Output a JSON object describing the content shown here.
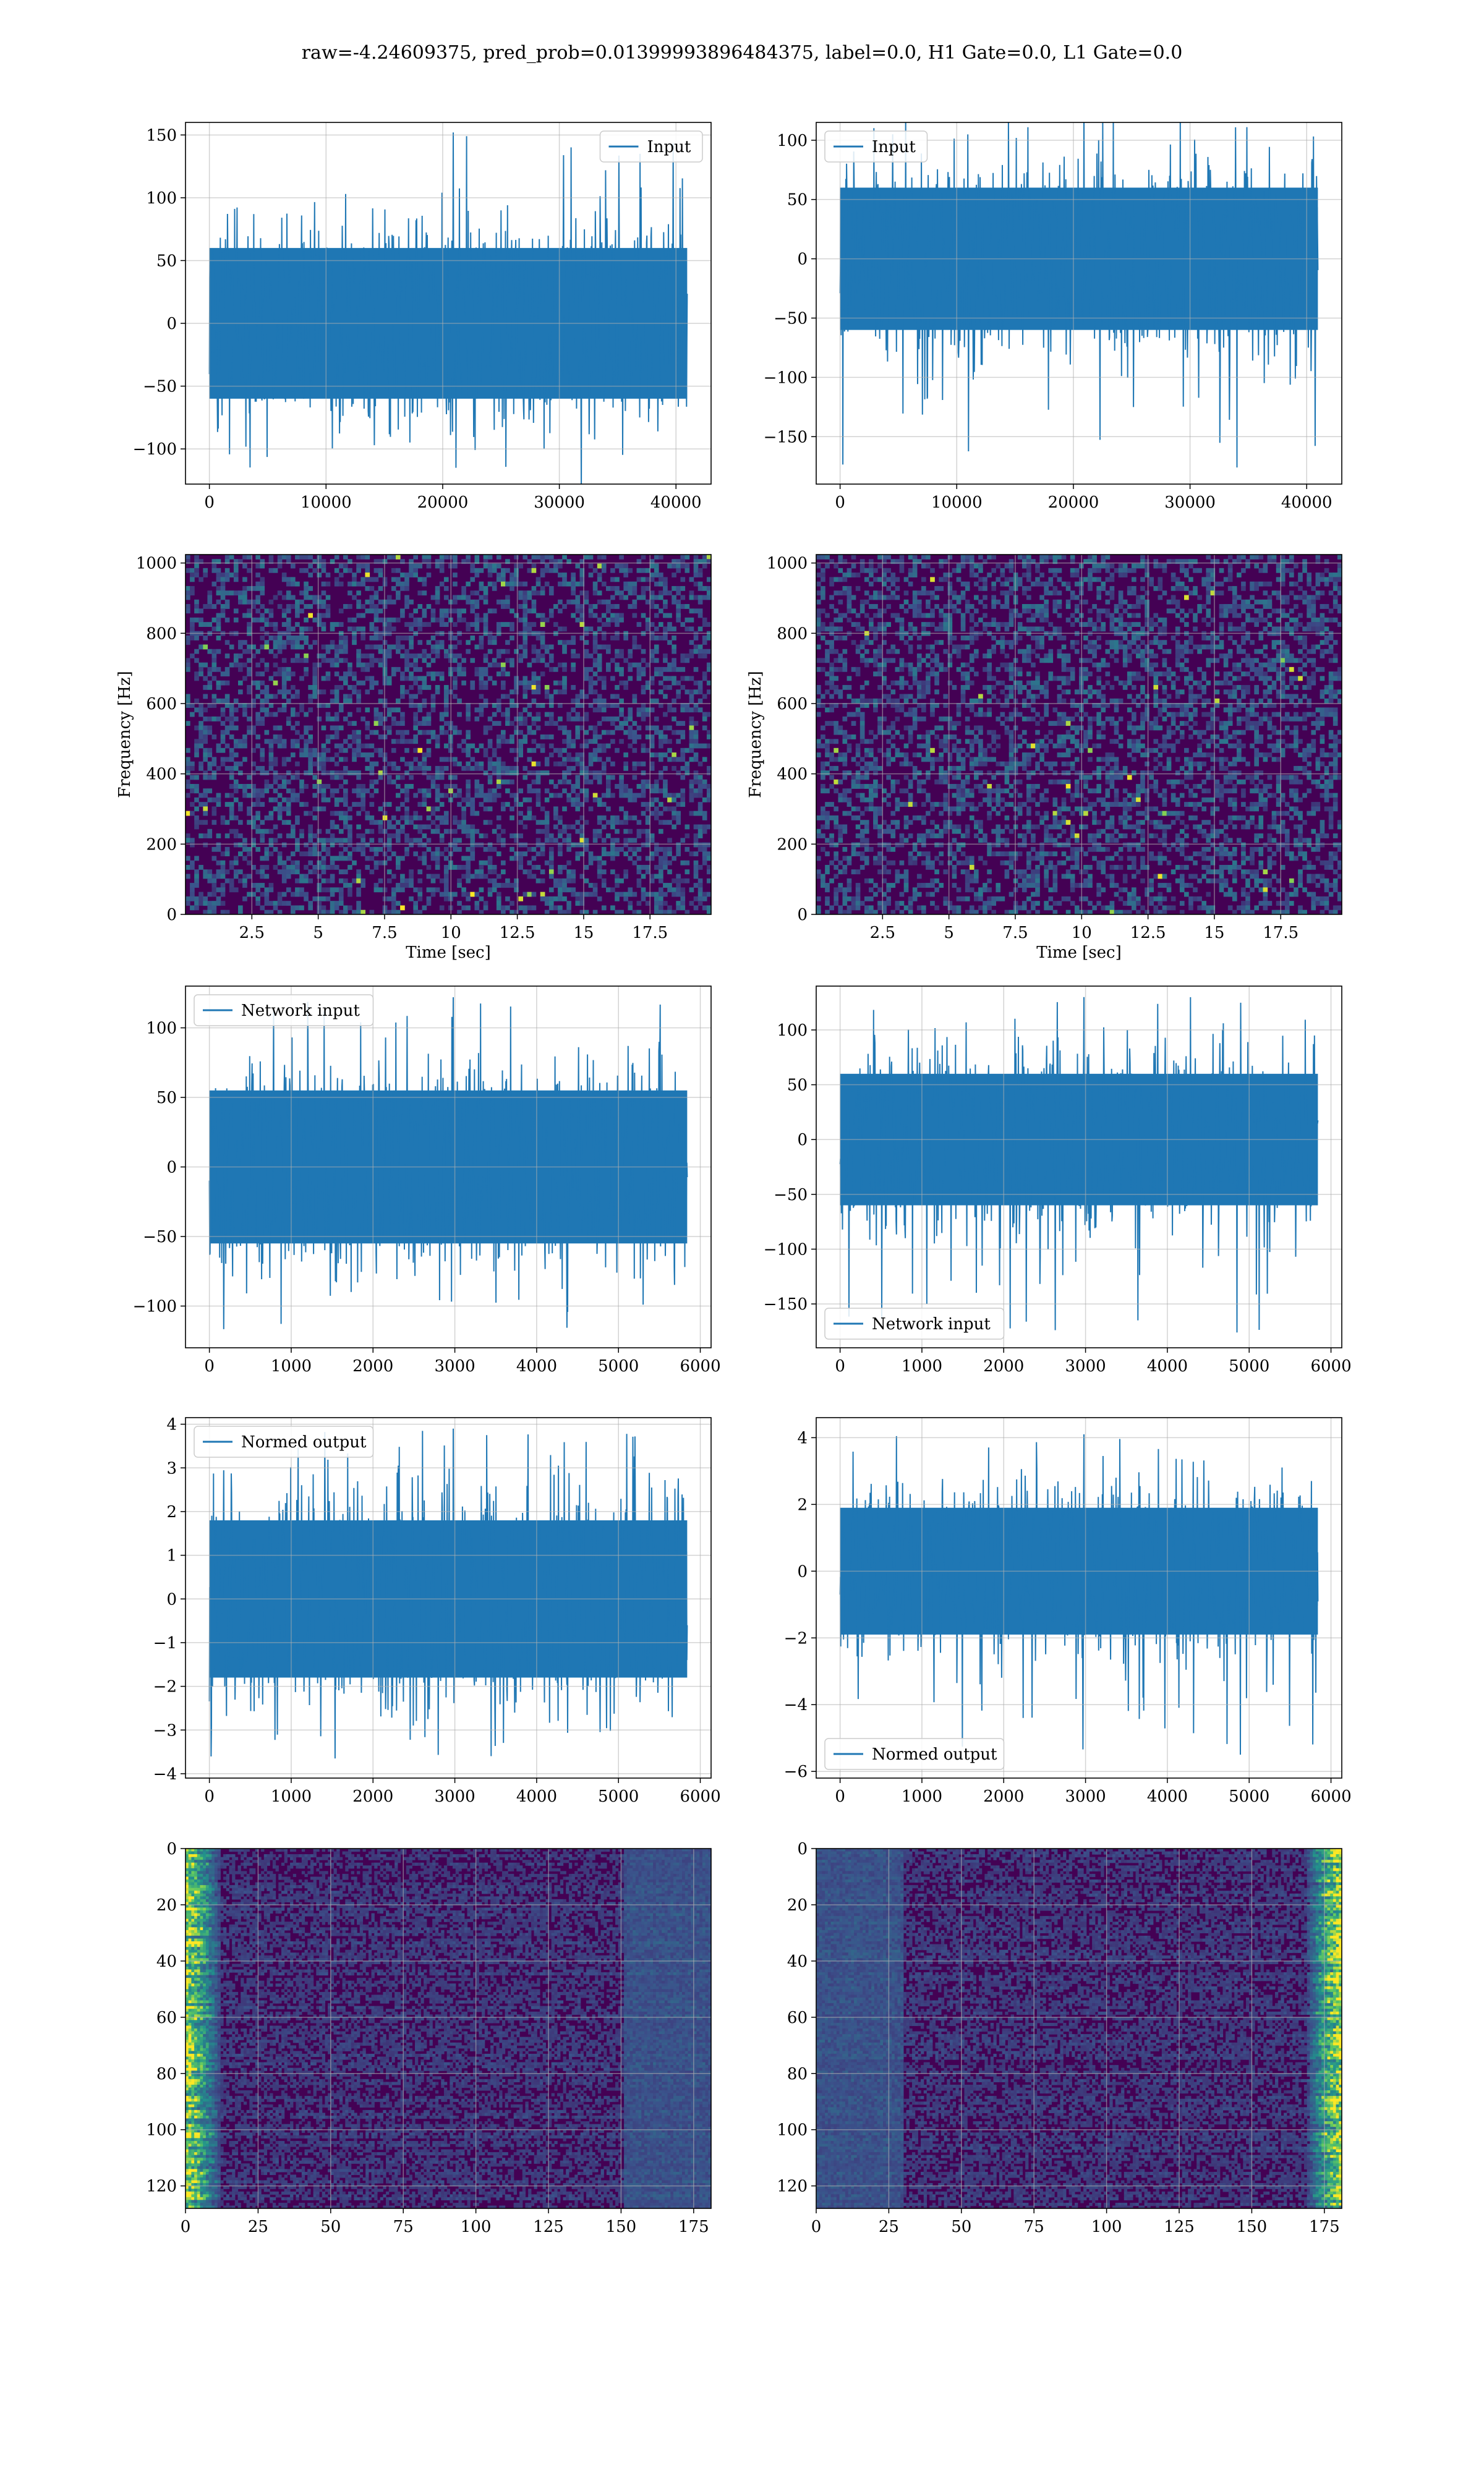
{
  "figure": {
    "title": "raw=-4.24609375, pred_prob=0.01399993896484375, label=0.0, H1 Gate=0.0, L1 Gate=0.0"
  },
  "colors": {
    "line": "#1f77b4",
    "grid": "#b0b0b0",
    "viridis_dark": "#440154",
    "viridis_blue": "#31688e",
    "viridis_green": "#35b779",
    "viridis_yellow": "#fde725"
  },
  "chart_data": [
    {
      "id": "h1-input",
      "type": "line",
      "series": [
        {
          "name": "Input",
          "summary": {
            "x_range": [
              0,
              40960
            ],
            "y_range": [
              -120,
              152
            ],
            "typical_band": [
              -60,
              60
            ]
          }
        }
      ],
      "legend": "top-right",
      "xlim": [
        -2048,
        43008
      ],
      "ylim": [
        -128,
        160
      ],
      "xticks": [
        0,
        10000,
        20000,
        30000,
        40000
      ],
      "yticks": [
        -100,
        -50,
        0,
        50,
        100,
        150
      ],
      "xlabel": "",
      "ylabel": "",
      "grid": true
    },
    {
      "id": "l1-input",
      "type": "line",
      "series": [
        {
          "name": "Input",
          "summary": {
            "x_range": [
              0,
              40960
            ],
            "y_range": [
              -176,
              124
            ],
            "typical_band": [
              -60,
              60
            ]
          }
        }
      ],
      "legend": "top-left",
      "xlim": [
        -2048,
        43008
      ],
      "ylim": [
        -190,
        115
      ],
      "xticks": [
        0,
        10000,
        20000,
        30000,
        40000
      ],
      "yticks": [
        -150,
        -100,
        -50,
        0,
        50,
        100
      ],
      "xlabel": "",
      "ylabel": "",
      "grid": true
    },
    {
      "id": "h1-spectrogram",
      "type": "heatmap",
      "xlim": [
        0,
        19.8
      ],
      "ylim": [
        0,
        1024
      ],
      "xticks": [
        2.5,
        5.0,
        7.5,
        10.0,
        12.5,
        15.0,
        17.5
      ],
      "yticks": [
        0,
        200,
        400,
        600,
        800,
        1000
      ],
      "xlabel": "Time [sec]",
      "ylabel": "Frequency [Hz]",
      "colormap": "viridis",
      "grid": true
    },
    {
      "id": "l1-spectrogram",
      "type": "heatmap",
      "xlim": [
        0,
        19.8
      ],
      "ylim": [
        0,
        1024
      ],
      "xticks": [
        2.5,
        5.0,
        7.5,
        10.0,
        12.5,
        15.0,
        17.5
      ],
      "yticks": [
        0,
        200,
        400,
        600,
        800,
        1000
      ],
      "xlabel": "Time [sec]",
      "ylabel": "Frequency [Hz]",
      "colormap": "viridis",
      "grid": true
    },
    {
      "id": "h1-network-input",
      "type": "line",
      "series": [
        {
          "name": "Network input",
          "summary": {
            "x_range": [
              0,
              5840
            ],
            "y_range": [
              -117,
              122
            ],
            "typical_band": [
              -55,
              55
            ]
          }
        }
      ],
      "legend": "top-left",
      "xlim": [
        -292,
        6132
      ],
      "ylim": [
        -130,
        130
      ],
      "xticks": [
        0,
        1000,
        2000,
        3000,
        4000,
        5000,
        6000
      ],
      "yticks": [
        -100,
        -50,
        0,
        50,
        100
      ],
      "xlabel": "",
      "ylabel": "",
      "grid": true
    },
    {
      "id": "l1-network-input",
      "type": "line",
      "series": [
        {
          "name": "Network input",
          "summary": {
            "x_range": [
              0,
              5840
            ],
            "y_range": [
              -176,
              130
            ],
            "typical_band": [
              -60,
              60
            ]
          }
        }
      ],
      "legend": "bottom-left",
      "xlim": [
        -292,
        6132
      ],
      "ylim": [
        -190,
        140
      ],
      "xticks": [
        0,
        1000,
        2000,
        3000,
        4000,
        5000,
        6000
      ],
      "yticks": [
        -150,
        -100,
        -50,
        0,
        50,
        100
      ],
      "xlabel": "",
      "ylabel": "",
      "grid": true
    },
    {
      "id": "h1-normed-output",
      "type": "line",
      "series": [
        {
          "name": "Normed output",
          "summary": {
            "x_range": [
              0,
              5840
            ],
            "y_range": [
              -3.7,
              3.9
            ],
            "typical_band": [
              -1.8,
              1.8
            ]
          }
        }
      ],
      "legend": "top-left",
      "xlim": [
        -292,
        6132
      ],
      "ylim": [
        -4.1,
        4.15
      ],
      "xticks": [
        0,
        1000,
        2000,
        3000,
        4000,
        5000,
        6000
      ],
      "yticks": [
        -4,
        -3,
        -2,
        -1,
        0,
        1,
        2,
        3,
        4
      ],
      "xlabel": "",
      "ylabel": "",
      "grid": true
    },
    {
      "id": "l1-normed-output",
      "type": "line",
      "series": [
        {
          "name": "Normed output",
          "summary": {
            "x_range": [
              0,
              5840
            ],
            "y_range": [
              -5.7,
              4.1
            ],
            "typical_band": [
              -1.9,
              1.9
            ]
          }
        }
      ],
      "legend": "bottom-left",
      "xlim": [
        -292,
        6132
      ],
      "ylim": [
        -6.2,
        4.6
      ],
      "xticks": [
        0,
        1000,
        2000,
        3000,
        4000,
        5000,
        6000
      ],
      "yticks": [
        -6,
        -4,
        -2,
        0,
        2,
        4
      ],
      "xlabel": "",
      "ylabel": "",
      "grid": true
    },
    {
      "id": "h1-qtransform",
      "type": "heatmap",
      "xlim": [
        0,
        181
      ],
      "ylim": [
        128,
        0
      ],
      "xticks": [
        0,
        25,
        50,
        75,
        100,
        125,
        150,
        175
      ],
      "yticks": [
        0,
        20,
        40,
        60,
        80,
        100,
        120
      ],
      "xlabel": "",
      "ylabel": "",
      "colormap": "viridis",
      "grid": true,
      "bright_region": "left"
    },
    {
      "id": "l1-qtransform",
      "type": "heatmap",
      "xlim": [
        0,
        181
      ],
      "ylim": [
        128,
        0
      ],
      "xticks": [
        0,
        25,
        50,
        75,
        100,
        125,
        150,
        175
      ],
      "yticks": [
        0,
        20,
        40,
        60,
        80,
        100,
        120
      ],
      "xlabel": "",
      "ylabel": "",
      "colormap": "viridis",
      "grid": true,
      "bright_region": "right"
    }
  ]
}
